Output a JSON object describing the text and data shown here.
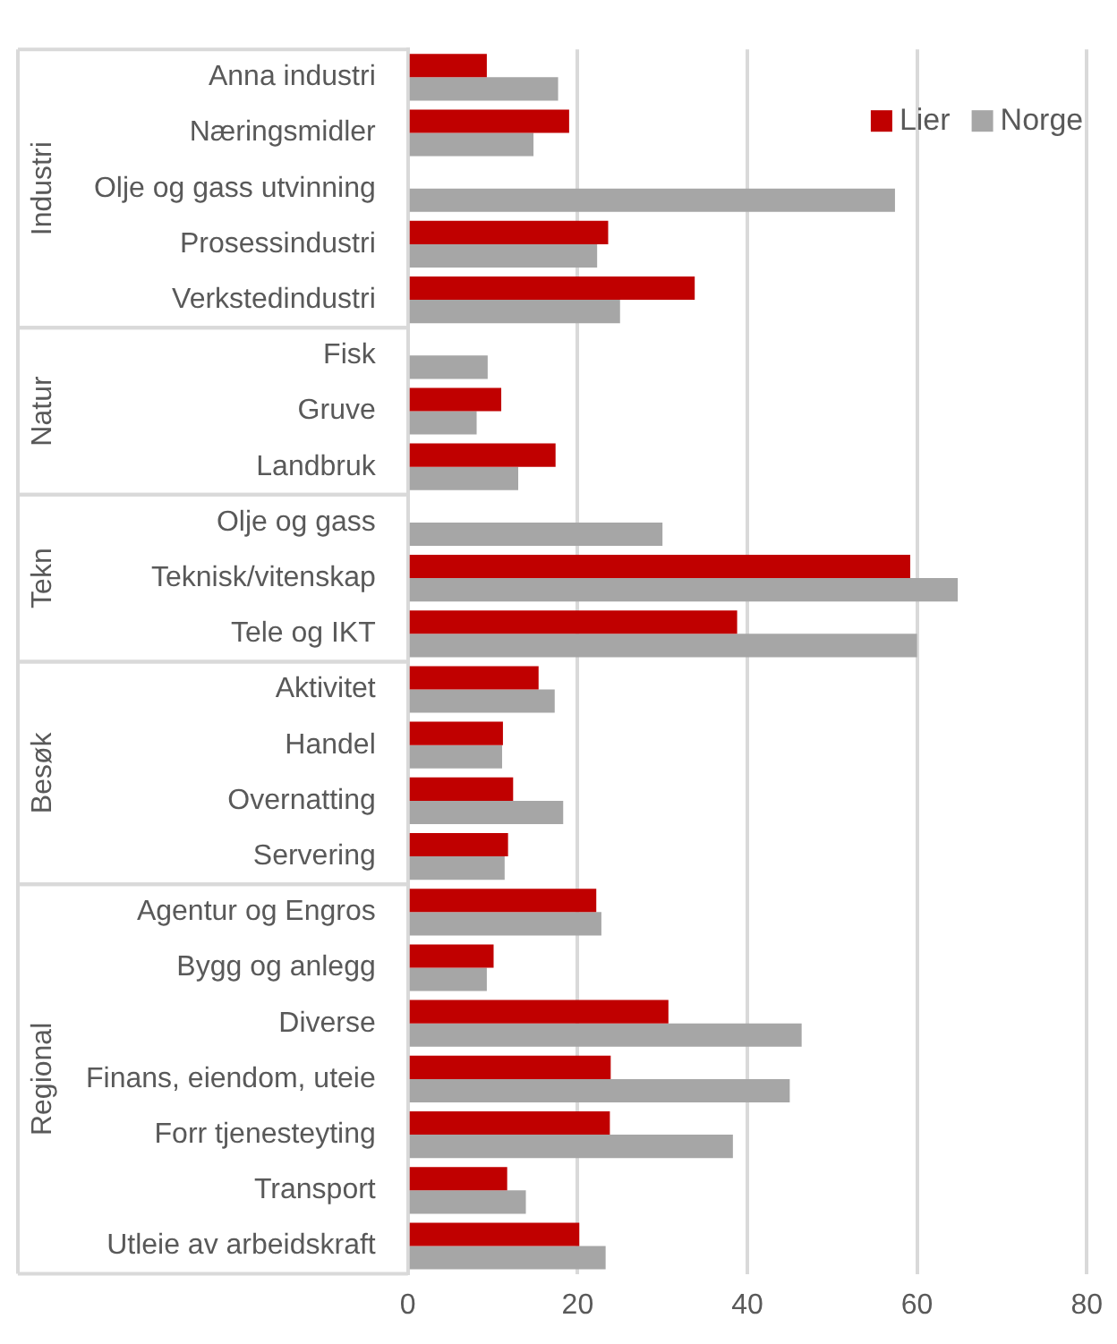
{
  "chart_data": {
    "type": "bar",
    "orientation": "horizontal",
    "categories": [
      "Anna industri",
      "Næringsmidler",
      "Olje og gass utvinning",
      "Prosessindustri",
      "Verkstedindustri",
      "Fisk",
      "Gruve",
      "Landbruk",
      "Olje og gass",
      "Teknisk/vitenskap",
      "Tele og IKT",
      "Aktivitet",
      "Handel",
      "Overnatting",
      "Servering",
      "Agentur og Engros",
      "Bygg og anlegg",
      "Diverse",
      "Finans, eiendom, uteie",
      "Forr tjenesteyting",
      "Transport",
      "Utleie av arbeidskraft"
    ],
    "series": [
      {
        "name": "Lier",
        "color": "#c00000",
        "values": [
          9.3,
          19,
          null,
          23.6,
          33.8,
          null,
          11,
          17.4,
          null,
          59.2,
          38.8,
          15.4,
          11.2,
          12.4,
          11.8,
          22.2,
          10.1,
          30.7,
          23.9,
          23.8,
          11.7,
          20.2
        ]
      },
      {
        "name": "Norge",
        "color": "#a6a6a6",
        "values": [
          17.7,
          14.8,
          57.4,
          22.3,
          25,
          9.4,
          8.1,
          13,
          30,
          64.8,
          60,
          17.3,
          11.1,
          18.3,
          11.4,
          22.8,
          9.3,
          46.4,
          45,
          38.3,
          13.9,
          23.3
        ]
      }
    ],
    "xlim": [
      0,
      80
    ],
    "xticks": [
      0,
      20,
      40,
      60,
      80
    ],
    "grid": "x",
    "legend": "top right",
    "annotations": [
      "Industri",
      "Natur",
      "Tekn",
      "Besøk",
      "Regional"
    ]
  }
}
